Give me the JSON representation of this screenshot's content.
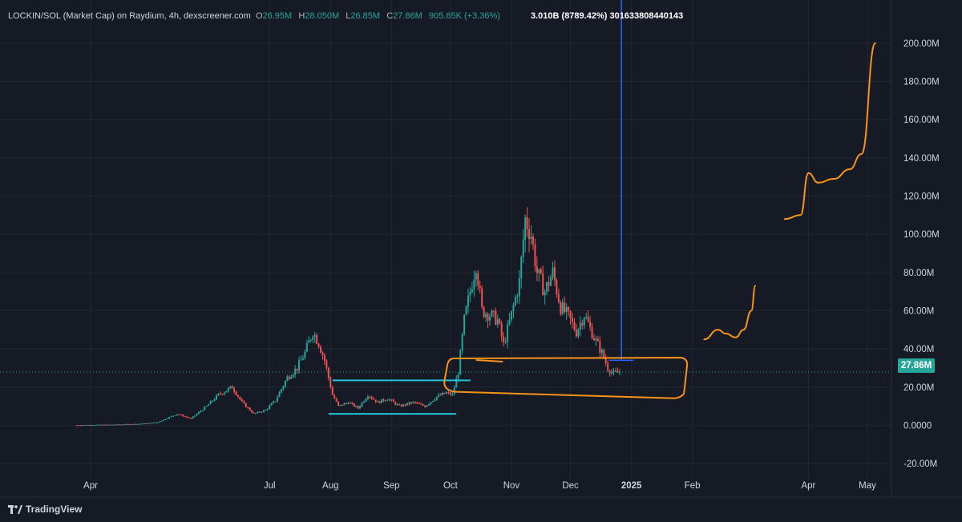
{
  "legend": {
    "symbol": "LOCKIN/SOL (Market Cap) on Raydium, 4h, dexscreener.com",
    "open_label": "O",
    "open": "26.95M",
    "high_label": "H",
    "high": "28.050M",
    "low_label": "L",
    "low": "26.85M",
    "close_label": "C",
    "close": "27.86M",
    "change": "905.65K (+3.36%)"
  },
  "measure_text": "3.010B (8789.42%) 301633808440143",
  "last_price_label": "27.86M",
  "brand": {
    "name": "TradingView"
  },
  "colors": {
    "background": "#161a25",
    "grid": "#232734",
    "up": "#26a69a",
    "down": "#ef5350",
    "annotation_orange": "#f7931a",
    "annotation_cyan": "#22c3d6",
    "measure_blue": "#2962ff",
    "last_price_line": "#26a69a"
  },
  "chart_data": {
    "type": "candlestick",
    "ylim": [
      -25,
      210
    ],
    "y_ticks": [
      -20,
      0,
      20,
      40,
      60,
      80,
      100,
      120,
      140,
      160,
      180,
      200
    ],
    "y_tick_labels": [
      "-20.00M",
      "0.0000",
      "20.00M",
      "40.00M",
      "60.00M",
      "80.00M",
      "100.00M",
      "120.00M",
      "140.00M",
      "160.00M",
      "180.00M",
      "200.00M"
    ],
    "x_ticks": [
      {
        "label": "Apr",
        "date": "2024-04-01",
        "bold": false
      },
      {
        "label": "Jul",
        "date": "2024-07-01",
        "bold": false
      },
      {
        "label": "Aug",
        "date": "2024-08-01",
        "bold": false
      },
      {
        "label": "Sep",
        "date": "2024-09-01",
        "bold": false
      },
      {
        "label": "Oct",
        "date": "2024-10-01",
        "bold": false
      },
      {
        "label": "Nov",
        "date": "2024-11-01",
        "bold": false
      },
      {
        "label": "Dec",
        "date": "2024-12-01",
        "bold": false
      },
      {
        "label": "2025",
        "date": "2025-01-01",
        "bold": true
      },
      {
        "label": "Feb",
        "date": "2025-02-01",
        "bold": false
      },
      {
        "label": "Apr",
        "date": "2025-04-01",
        "bold": false
      },
      {
        "label": "May",
        "date": "2025-05-01",
        "bold": false
      }
    ],
    "price_series": [
      [
        "2024-03-25",
        0.1
      ],
      [
        "2024-04-10",
        0.3
      ],
      [
        "2024-04-25",
        0.7
      ],
      [
        "2024-05-05",
        1.5
      ],
      [
        "2024-05-15",
        6
      ],
      [
        "2024-05-22",
        3.5
      ],
      [
        "2024-05-30",
        10
      ],
      [
        "2024-06-05",
        16
      ],
      [
        "2024-06-12",
        20
      ],
      [
        "2024-06-17",
        12
      ],
      [
        "2024-06-23",
        6
      ],
      [
        "2024-06-29",
        8
      ],
      [
        "2024-07-04",
        13
      ],
      [
        "2024-07-10",
        25
      ],
      [
        "2024-07-15",
        30
      ],
      [
        "2024-07-19",
        38
      ],
      [
        "2024-07-23",
        49
      ],
      [
        "2024-07-26",
        43
      ],
      [
        "2024-07-29",
        34
      ],
      [
        "2024-08-02",
        16
      ],
      [
        "2024-08-05",
        10
      ],
      [
        "2024-08-10",
        12
      ],
      [
        "2024-08-15",
        9
      ],
      [
        "2024-08-20",
        16
      ],
      [
        "2024-08-25",
        12
      ],
      [
        "2024-08-30",
        14
      ],
      [
        "2024-09-05",
        10
      ],
      [
        "2024-09-12",
        12
      ],
      [
        "2024-09-18",
        10
      ],
      [
        "2024-09-24",
        15
      ],
      [
        "2024-09-29",
        17
      ],
      [
        "2024-10-02",
        16
      ],
      [
        "2024-10-05",
        28
      ],
      [
        "2024-10-08",
        55
      ],
      [
        "2024-10-11",
        70
      ],
      [
        "2024-10-14",
        85
      ],
      [
        "2024-10-17",
        60
      ],
      [
        "2024-10-21",
        58
      ],
      [
        "2024-10-25",
        55
      ],
      [
        "2024-10-28",
        42
      ],
      [
        "2024-11-01",
        58
      ],
      [
        "2024-11-05",
        75
      ],
      [
        "2024-11-08",
        108
      ],
      [
        "2024-11-11",
        100
      ],
      [
        "2024-11-14",
        80
      ],
      [
        "2024-11-18",
        70
      ],
      [
        "2024-11-22",
        80
      ],
      [
        "2024-11-26",
        62
      ],
      [
        "2024-11-30",
        57
      ],
      [
        "2024-12-04",
        49
      ],
      [
        "2024-12-08",
        58
      ],
      [
        "2024-12-13",
        46
      ],
      [
        "2024-12-17",
        38
      ],
      [
        "2024-12-20",
        30
      ],
      [
        "2024-12-23",
        27
      ],
      [
        "2024-12-26",
        27.86
      ]
    ],
    "last_value": 27.86,
    "annotations": {
      "cyan_range": {
        "start": "2024-07-31",
        "end": "2024-10-01",
        "top": 23.5,
        "bottom": 6
      },
      "measure_line": {
        "date": "2024-12-31",
        "from": 34,
        "to": 225
      },
      "orange_range": {
        "start": "2024-09-30",
        "end": "2024-12-31",
        "top": 35,
        "bottom": 15
      },
      "projection": [
        [
          [
            "2025-02-07",
            45
          ],
          [
            "2025-02-14",
            50
          ],
          [
            "2025-02-18",
            48
          ],
          [
            "2025-02-23",
            46
          ],
          [
            "2025-02-27",
            50
          ],
          [
            "2025-03-03",
            60
          ],
          [
            "2025-03-05",
            73
          ]
        ],
        [
          [
            "2025-03-20",
            108
          ],
          [
            "2025-03-28",
            110
          ],
          [
            "2025-04-01",
            132
          ],
          [
            "2025-04-06",
            127
          ],
          [
            "2025-04-14",
            129
          ],
          [
            "2025-04-22",
            134
          ],
          [
            "2025-04-28",
            142
          ],
          [
            "2025-05-05",
            200
          ]
        ]
      ]
    }
  }
}
